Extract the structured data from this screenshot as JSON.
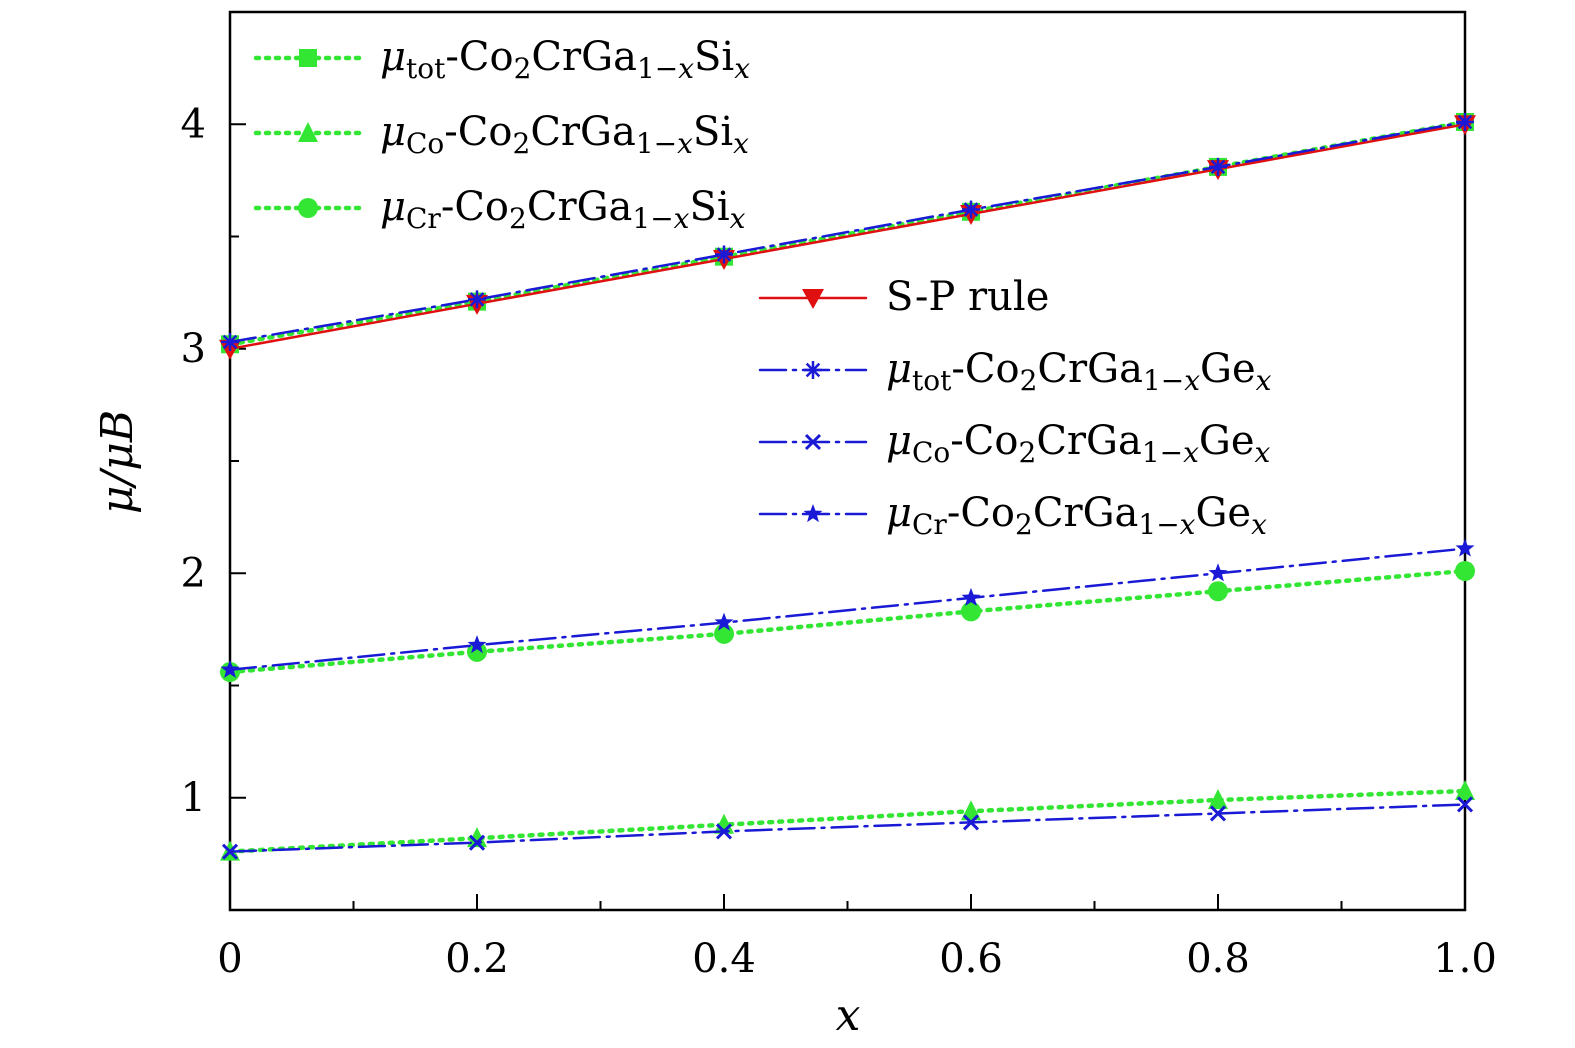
{
  "chart_data": {
    "type": "line",
    "xlabel": "x",
    "ylabel": "μ/μB",
    "xlim": [
      0,
      1.0
    ],
    "ylim": [
      0.5,
      4.5
    ],
    "x_ticks": [
      "0",
      "0.2",
      "0.4",
      "0.6",
      "0.8",
      "1.0"
    ],
    "y_ticks": [
      "1",
      "2",
      "3",
      "4"
    ],
    "grid": false,
    "legend_top": [
      "μtot-Co2CrGa1−xSix",
      "μCo-Co2CrGa1−xSix",
      "μCr-Co2CrGa1−xSix"
    ],
    "legend_mid": [
      "S-P rule",
      "μtot-Co2CrGa1−xGex",
      "μCo-Co2CrGa1−xGex",
      "μCr-Co2CrGa1−xGex"
    ],
    "colors": {
      "si": "#33e633",
      "ge": "#1a1ad6",
      "sp": "#e01010"
    },
    "x": [
      0,
      0.2,
      0.4,
      0.6,
      0.8,
      1.0
    ],
    "series": [
      {
        "name": "μtot-Co2CrGa1−xSix",
        "values": [
          3.02,
          3.21,
          3.41,
          3.61,
          3.81,
          4.01
        ],
        "color": "#33e633",
        "marker": "square",
        "dash": "dotted"
      },
      {
        "name": "μCo-Co2CrGa1−xSix",
        "values": [
          0.76,
          0.82,
          0.88,
          0.94,
          0.99,
          1.03
        ],
        "color": "#33e633",
        "marker": "triangle",
        "dash": "dotted"
      },
      {
        "name": "μCr-Co2CrGa1−xSix",
        "values": [
          1.56,
          1.65,
          1.73,
          1.83,
          1.92,
          2.01
        ],
        "color": "#33e633",
        "marker": "circle",
        "dash": "dotted"
      },
      {
        "name": "S-P rule",
        "values": [
          3.0,
          3.2,
          3.4,
          3.6,
          3.8,
          4.0
        ],
        "color": "#e01010",
        "marker": "triangle-down",
        "dash": "solid"
      },
      {
        "name": "μtot-Co2CrGa1−xGex",
        "values": [
          3.03,
          3.22,
          3.42,
          3.62,
          3.81,
          4.01
        ],
        "color": "#1a1ad6",
        "marker": "asterisk",
        "dash": "dashdot"
      },
      {
        "name": "μCo-Co2CrGa1−xGex",
        "values": [
          0.76,
          0.8,
          0.85,
          0.89,
          0.93,
          0.97
        ],
        "color": "#1a1ad6",
        "marker": "x",
        "dash": "dashdot"
      },
      {
        "name": "μCr-Co2CrGa1−xGex",
        "values": [
          1.57,
          1.68,
          1.78,
          1.89,
          2.0,
          2.11
        ],
        "color": "#1a1ad6",
        "marker": "star",
        "dash": "dashdot"
      }
    ]
  }
}
